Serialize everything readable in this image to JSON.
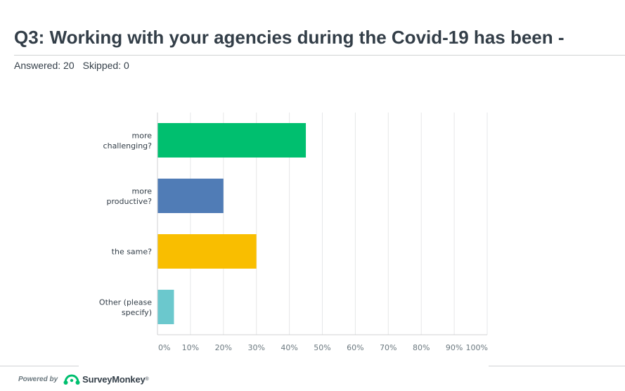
{
  "question": {
    "title": "Q3: Working with your agencies during the Covid-19 has been -",
    "answered_label": "Answered: 20",
    "skipped_label": "Skipped: 0"
  },
  "chart_data": {
    "type": "bar",
    "orientation": "horizontal",
    "categories": [
      [
        "more",
        "challenging?"
      ],
      [
        "more",
        "productive?"
      ],
      [
        "the same?"
      ],
      [
        "Other (please",
        "specify)"
      ]
    ],
    "values": [
      45,
      20,
      30,
      5
    ],
    "value_unit": "%",
    "colors": [
      "#00bf6f",
      "#507cb6",
      "#f9be00",
      "#6bc8cd"
    ],
    "xlim": [
      0,
      100
    ],
    "xticks": [
      "0%",
      "10%",
      "20%",
      "30%",
      "40%",
      "50%",
      "60%",
      "70%",
      "80%",
      "90%",
      "100%"
    ],
    "grid": true,
    "title": "",
    "xlabel": "",
    "ylabel": ""
  },
  "footer": {
    "powered_by": "Powered by",
    "brand": "SurveyMonkey",
    "brand_mark": "®",
    "logo_icon": "surveymonkey-logo-icon",
    "brand_color": "#00bf6f"
  }
}
